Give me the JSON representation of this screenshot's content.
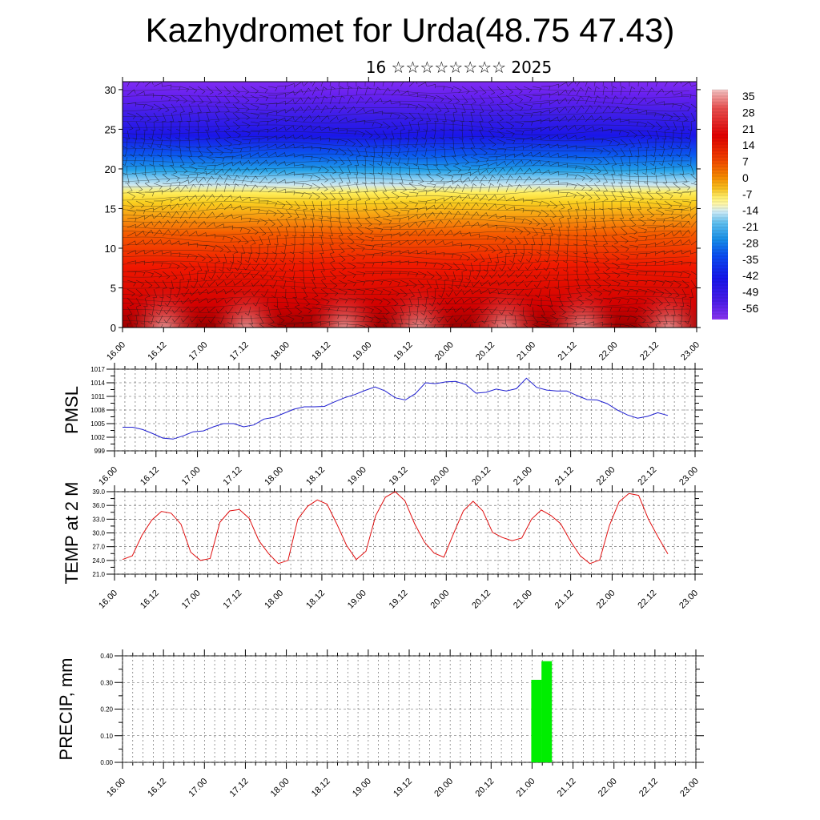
{
  "header": {
    "title": "Kazhydromet for Urda(48.75 47.43)",
    "subtitle": "16 ☆☆☆☆☆☆☆☆ 2025"
  },
  "chart_data": [
    {
      "type": "heatmap",
      "title": "",
      "ylabel": "",
      "x_ticks": [
        "16.00",
        "16.12",
        "17.00",
        "17.12",
        "18.00",
        "18.12",
        "19.00",
        "19.12",
        "20.00",
        "20.12",
        "21.00",
        "21.12",
        "22.00",
        "22.12",
        "23.00"
      ],
      "y_ticks": [
        "0",
        "5",
        "10",
        "15",
        "20",
        "25",
        "30"
      ],
      "ylim": [
        0,
        31
      ],
      "colorbar_labels": [
        "35",
        "28",
        "21",
        "14",
        "7",
        "0",
        "-7",
        "-14",
        "-21",
        "-28",
        "-35",
        "-42",
        "-49",
        "-56"
      ],
      "overlay": "wind barbs",
      "colormap": "temperature (red=warm, blue/purple=cold)"
    },
    {
      "type": "line",
      "ylabel": "PMSL",
      "ylim": [
        999,
        1017
      ],
      "y_ticks": [
        "1017",
        "1014",
        "1011",
        "1008",
        "1005",
        "1002",
        "999"
      ],
      "x_ticks": [
        "16.00",
        "16.12",
        "17.00",
        "17.12",
        "18.00",
        "18.12",
        "19.00",
        "19.12",
        "20.00",
        "20.12",
        "21.00",
        "21.12",
        "22.00",
        "22.12",
        "23.00"
      ],
      "series": [
        {
          "color": "#1f1fd0",
          "values": [
            1004.2,
            1004.2,
            1003.7,
            1002.8,
            1001.8,
            1001.6,
            1002.3,
            1003.2,
            1003.4,
            1004.3,
            1005.0,
            1005.0,
            1004.3,
            1004.7,
            1006.0,
            1006.4,
            1007.3,
            1008.2,
            1008.7,
            1008.7,
            1008.8,
            1009.8,
            1010.7,
            1011.4,
            1012.3,
            1013.1,
            1012.2,
            1010.7,
            1010.2,
            1011.6,
            1014.0,
            1013.8,
            1014.2,
            1014.3,
            1013.6,
            1011.7,
            1011.9,
            1012.6,
            1012.2,
            1012.7,
            1015.0,
            1013.0,
            1012.4,
            1012.2,
            1012.2,
            1011.2,
            1010.3,
            1010.2,
            1009.4,
            1008.0,
            1006.9,
            1006.2,
            1006.6,
            1007.4,
            1006.8
          ]
        }
      ]
    },
    {
      "type": "line",
      "ylabel": "TEMP at 2 M",
      "ylim": [
        21.0,
        39.0
      ],
      "y_ticks": [
        "39.0",
        "36.0",
        "33.0",
        "30.0",
        "27.0",
        "24.0",
        "21.0"
      ],
      "x_ticks": [
        "16.00",
        "16.12",
        "17.00",
        "17.12",
        "18.00",
        "18.12",
        "19.00",
        "19.12",
        "20.00",
        "20.12",
        "21.00",
        "21.12",
        "22.00",
        "22.12",
        "23.00"
      ],
      "series": [
        {
          "color": "#e01010",
          "values": [
            24.2,
            25.0,
            29.5,
            32.8,
            34.7,
            34.3,
            31.9,
            25.8,
            24.0,
            24.4,
            32.3,
            34.8,
            35.1,
            33.2,
            28.3,
            25.5,
            23.3,
            24.0,
            33.0,
            35.8,
            37.2,
            36.3,
            32.0,
            27.3,
            24.2,
            26.0,
            33.8,
            37.8,
            39.0,
            37.0,
            32.0,
            28.0,
            25.6,
            24.7,
            29.9,
            34.8,
            36.9,
            34.8,
            30.1,
            29.0,
            28.3,
            28.9,
            33.0,
            35.0,
            33.8,
            32.0,
            28.2,
            25.0,
            23.3,
            24.1,
            31.6,
            36.8,
            38.6,
            38.2,
            33.0,
            29.1,
            25.4
          ]
        }
      ]
    },
    {
      "type": "bar",
      "ylabel": "PRECIP, mm",
      "ylim": [
        0.0,
        0.4
      ],
      "y_ticks": [
        "0.40",
        "0.30",
        "0.20",
        "0.10",
        "0.00"
      ],
      "x_ticks": [
        "16.00",
        "16.12",
        "17.00",
        "17.12",
        "18.00",
        "18.12",
        "19.00",
        "19.12",
        "20.00",
        "20.12",
        "21.00",
        "21.12",
        "22.00",
        "22.12",
        "23.00"
      ],
      "series": [
        {
          "color": "#00ee00",
          "bars": [
            {
              "t": 120,
              "value": 0.31
            },
            {
              "t": 123,
              "value": 0.38
            }
          ]
        }
      ]
    }
  ]
}
